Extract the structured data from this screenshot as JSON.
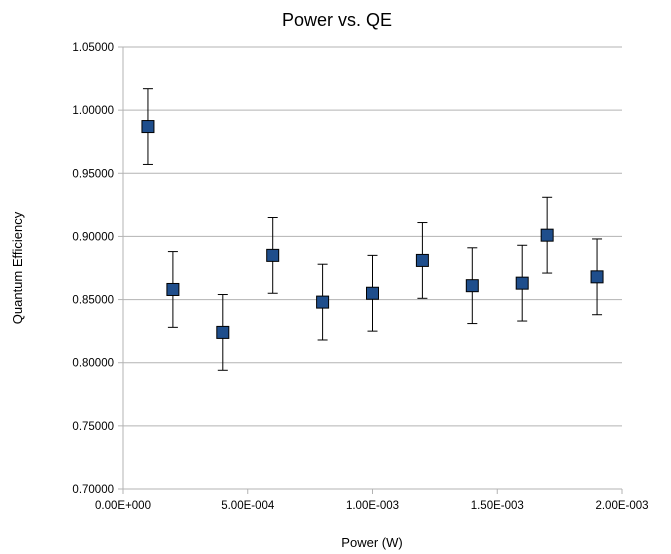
{
  "chart_data": {
    "type": "scatter",
    "title": "Power vs. QE",
    "xlabel": "Power (W)",
    "ylabel": "Quantum Efficiency",
    "xlim": [
      0,
      0.002
    ],
    "ylim": [
      0.7,
      1.05
    ],
    "x_ticks": [
      0,
      0.0005,
      0.001,
      0.0015,
      0.002
    ],
    "x_tick_labels": [
      "0.00E+000",
      "5.00E-004",
      "1.00E-003",
      "1.50E-003",
      "2.00E-003"
    ],
    "y_ticks": [
      0.7,
      0.75,
      0.8,
      0.85,
      0.9,
      0.95,
      1.0,
      1.05
    ],
    "y_tick_labels": [
      "0.70000",
      "0.75000",
      "0.80000",
      "0.85000",
      "0.90000",
      "0.95000",
      "1.00000",
      "1.05000"
    ],
    "grid": "horizontal",
    "legend": "none",
    "marker": "square",
    "marker_color": "#1f4e8c",
    "error_bar": 0.03,
    "series": [
      {
        "x": [
          0.0001,
          0.0002,
          0.0004,
          0.0006,
          0.0008,
          0.001,
          0.0012,
          0.0014,
          0.0016,
          0.0017,
          0.0019
        ],
        "y": [
          0.987,
          0.858,
          0.824,
          0.885,
          0.848,
          0.855,
          0.881,
          0.861,
          0.863,
          0.901,
          0.868
        ]
      }
    ]
  }
}
